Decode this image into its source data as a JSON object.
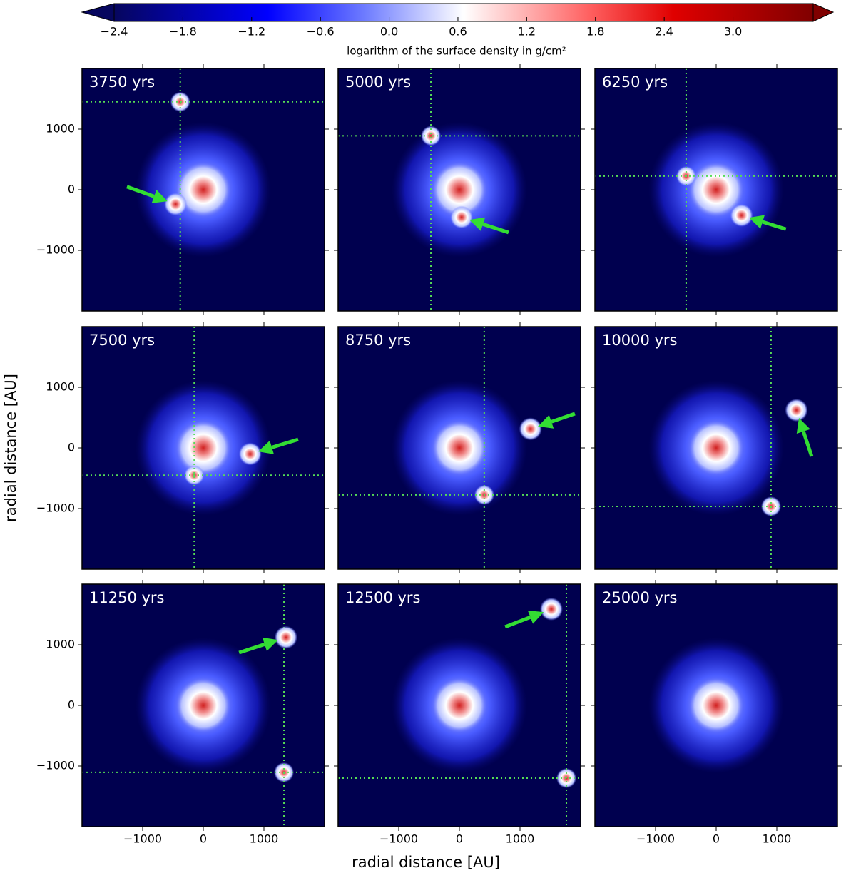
{
  "chart_data": {
    "type": "image-grid",
    "colorbar": {
      "label": "logarithm of the surface density in g/cm²",
      "clim": [
        -2.4,
        3.7
      ],
      "ticks": [
        {
          "value": -2.4,
          "label": "−2.4"
        },
        {
          "value": -1.8,
          "label": "−1.8"
        },
        {
          "value": -1.2,
          "label": "−1.2"
        },
        {
          "value": -0.6,
          "label": "−0.6"
        },
        {
          "value": 0,
          "label": "0.0"
        },
        0.6,
        1.2,
        1.8,
        2.4,
        {
          "value": 3,
          "label": "3.0"
        }
      ]
    },
    "xlabel": "radial distance [AU]",
    "ylabel": "radial distance [AU]",
    "xlim": [
      -2000,
      2000
    ],
    "ylim": [
      -2000,
      2000
    ],
    "xticks": [
      {
        "value": -1000,
        "label": "−1000"
      },
      0,
      1000
    ],
    "yticks": [
      {
        "value": -1000,
        "label": "−1000"
      },
      0,
      1000
    ],
    "panels": [
      {
        "title": "3750 yrs",
        "crosshair": {
          "x": -380,
          "y": 1450
        },
        "arrow": {
          "x": -590,
          "y": -190,
          "tail_x": -1260,
          "tail_y": 50
        }
      },
      {
        "title": "5000 yrs",
        "crosshair": {
          "x": -470,
          "y": 890
        },
        "arrow": {
          "x": 165,
          "y": -495,
          "tail_x": 810,
          "tail_y": -705
        }
      },
      {
        "title": "6250 yrs",
        "crosshair": {
          "x": -495,
          "y": 225
        },
        "arrow": {
          "x": 540,
          "y": -460,
          "tail_x": 1150,
          "tail_y": -650
        }
      },
      {
        "title": "7500 yrs",
        "crosshair": {
          "x": -150,
          "y": -450
        },
        "arrow": {
          "x": 905,
          "y": -60,
          "tail_x": 1565,
          "tail_y": 140
        }
      },
      {
        "title": "8750 yrs",
        "crosshair": {
          "x": 410,
          "y": -775
        },
        "arrow": {
          "x": 1295,
          "y": 355,
          "tail_x": 1905,
          "tail_y": 565
        }
      },
      {
        "title": "10000 yrs",
        "crosshair": {
          "x": 905,
          "y": -965
        },
        "arrow": {
          "x": 1365,
          "y": 495,
          "tail_x": 1575,
          "tail_y": -140
        }
      },
      {
        "title": "11250 yrs",
        "crosshair": {
          "x": 1330,
          "y": -1105
        },
        "arrow": {
          "x": 1235,
          "y": 1080,
          "tail_x": 590,
          "tail_y": 870
        }
      },
      {
        "title": "12500 yrs",
        "crosshair": {
          "x": 1765,
          "y": -1200
        },
        "arrow": {
          "x": 1390,
          "y": 1540,
          "tail_x": 755,
          "tail_y": 1295
        }
      },
      {
        "title": "25000 yrs"
      }
    ]
  }
}
